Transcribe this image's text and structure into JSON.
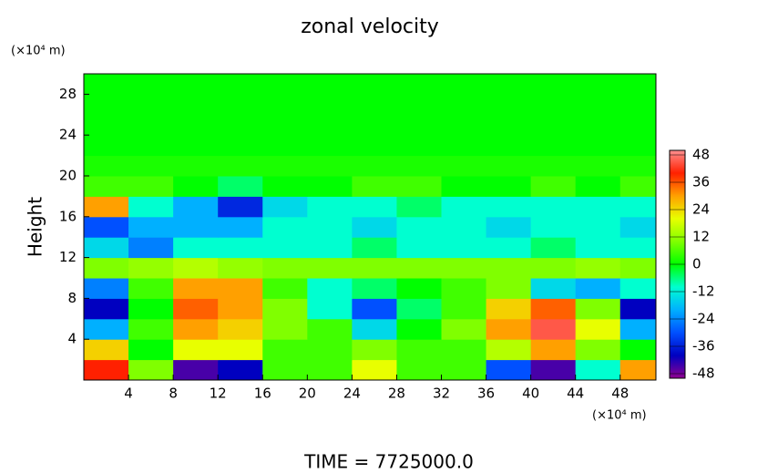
{
  "chart_data": {
    "type": "heatmap",
    "title": "zonal velocity",
    "ylabel": "Height",
    "x_units": "(×10⁴ m)",
    "y_units": "(×10⁴ m)",
    "footer": "TIME  =  7725000.0",
    "x": [
      2,
      6,
      10,
      14,
      18,
      22,
      26,
      30,
      34,
      38,
      42,
      46,
      50
    ],
    "y": [
      1,
      3,
      5,
      7,
      9,
      11,
      13,
      15,
      17,
      19,
      21,
      23,
      25,
      27,
      29
    ],
    "z": [
      [
        40,
        10,
        -45,
        -40,
        5,
        5,
        20,
        5,
        5,
        -30,
        -45,
        -10,
        30
      ],
      [
        25,
        0,
        20,
        20,
        5,
        5,
        10,
        5,
        5,
        15,
        30,
        10,
        0
      ],
      [
        -20,
        5,
        30,
        25,
        10,
        5,
        -15,
        0,
        10,
        30,
        45,
        20,
        -20
      ],
      [
        -40,
        0,
        35,
        30,
        10,
        -10,
        -30,
        -5,
        5,
        25,
        35,
        10,
        -40
      ],
      [
        -25,
        5,
        30,
        30,
        5,
        -10,
        -5,
        0,
        5,
        10,
        -15,
        -20,
        -10
      ],
      [
        10,
        12,
        15,
        12,
        10,
        10,
        10,
        10,
        10,
        10,
        10,
        12,
        10
      ],
      [
        -15,
        -25,
        -10,
        -10,
        -10,
        -10,
        -5,
        -10,
        -10,
        -10,
        -5,
        -10,
        -10
      ],
      [
        -30,
        -20,
        -20,
        -20,
        -10,
        -10,
        -15,
        -10,
        -10,
        -15,
        -10,
        -10,
        -15
      ],
      [
        30,
        -10,
        -20,
        -35,
        -15,
        -10,
        -10,
        -5,
        -10,
        -10,
        -10,
        -10,
        -10
      ],
      [
        5,
        5,
        0,
        -5,
        0,
        0,
        5,
        5,
        0,
        0,
        5,
        0,
        5
      ],
      [
        2,
        2,
        2,
        2,
        2,
        2,
        2,
        2,
        2,
        2,
        2,
        2,
        2
      ],
      [
        0,
        0,
        0,
        0,
        0,
        0,
        0,
        0,
        0,
        0,
        0,
        0,
        0
      ],
      [
        0,
        0,
        0,
        0,
        0,
        0,
        0,
        0,
        0,
        0,
        0,
        0,
        0
      ],
      [
        0,
        0,
        0,
        0,
        0,
        0,
        0,
        0,
        0,
        0,
        0,
        0,
        0
      ],
      [
        0,
        0,
        0,
        0,
        0,
        0,
        0,
        0,
        0,
        0,
        0,
        0,
        0
      ]
    ],
    "xlim": [
      0,
      51.2
    ],
    "ylim": [
      0,
      30
    ],
    "xticks": [
      4,
      8,
      12,
      16,
      20,
      24,
      28,
      32,
      36,
      40,
      44,
      48
    ],
    "yticks": [
      4,
      8,
      12,
      16,
      20,
      24,
      28
    ],
    "clim": [
      -50,
      50
    ],
    "cticks": [
      48,
      36,
      24,
      12,
      0,
      -12,
      -24,
      -36,
      -48
    ],
    "colormap": [
      "#900090",
      "#0000c0",
      "#0050ff",
      "#00b0ff",
      "#00ffd0",
      "#00ff00",
      "#80ff00",
      "#e8ff00",
      "#ffa000",
      "#ff2000",
      "#ff9090"
    ]
  }
}
